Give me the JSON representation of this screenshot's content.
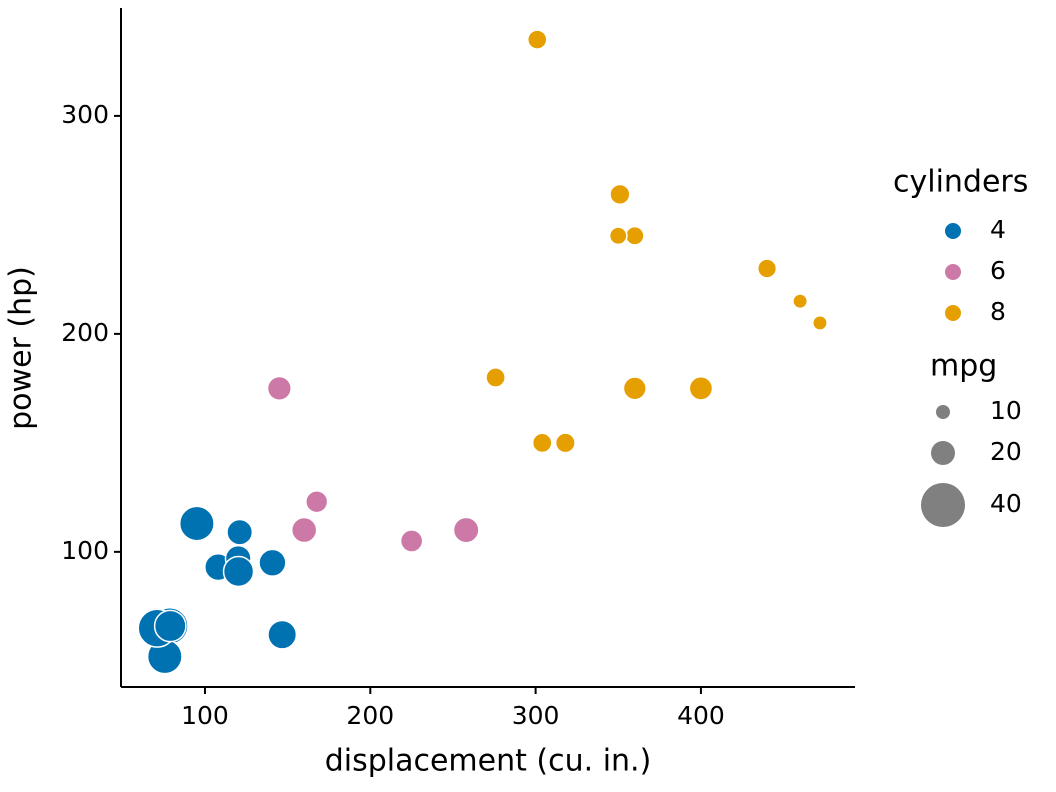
{
  "chart_data": {
    "type": "scatter",
    "x_label": "displacement (cu. in.)",
    "y_label": "power (hp)",
    "legend_title": "cylinders",
    "size_legend": {
      "title": "mpg",
      "values": [
        10,
        20,
        40
      ]
    },
    "xlim": [
      49.2,
      493.2
    ],
    "xticks": [
      100,
      200,
      300,
      400
    ],
    "ylim": [
      38,
      349.5
    ],
    "yticks": [
      100,
      200,
      300
    ],
    "grid": false,
    "legend_position": "right",
    "series": [
      {
        "name": "4",
        "color": "#0072b2",
        "x": [
          108,
          146.7,
          140.8,
          78.7,
          75.7,
          71.1,
          120.1,
          79,
          120.3,
          95.1,
          121
        ],
        "values": [
          93,
          62,
          95,
          66,
          52,
          65,
          97,
          66,
          91,
          113,
          109
        ],
        "sizes": [
          22.8,
          24.4,
          22.8,
          32.4,
          30.4,
          33.9,
          21.5,
          27.3,
          26.0,
          30.4,
          21.4
        ]
      },
      {
        "name": "6",
        "color": "#cc79a7",
        "x": [
          160,
          160,
          258,
          225,
          167.6,
          167.6,
          145
        ],
        "values": [
          110,
          110,
          110,
          105,
          123,
          123,
          175
        ],
        "sizes": [
          21.0,
          21.0,
          21.4,
          18.1,
          19.2,
          17.8,
          19.7
        ]
      },
      {
        "name": "8",
        "color": "#e69f00",
        "x": [
          360,
          360,
          275.8,
          275.8,
          275.8,
          472,
          460,
          440,
          318,
          304,
          350,
          400,
          351,
          301
        ],
        "values": [
          175,
          245,
          180,
          180,
          180,
          205,
          215,
          230,
          150,
          150,
          245,
          175,
          264,
          335
        ],
        "sizes": [
          18.7,
          14.3,
          16.4,
          17.3,
          15.2,
          10.4,
          10.4,
          14.7,
          15.5,
          15.2,
          13.3,
          19.2,
          15.8,
          15.0
        ]
      }
    ]
  }
}
